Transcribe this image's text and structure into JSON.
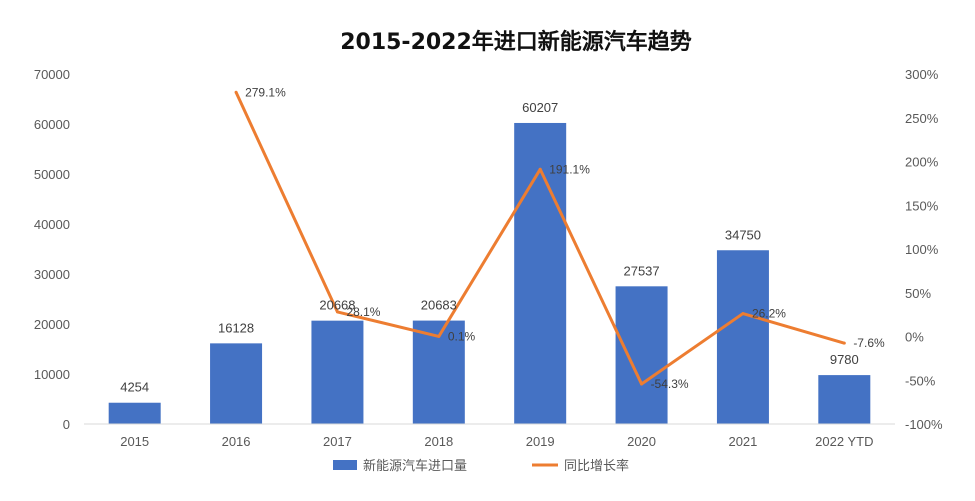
{
  "chart_data": {
    "type": "bar",
    "title": "2015-2022年进口新能源汽车趋势",
    "categories": [
      "2015",
      "2016",
      "2017",
      "2018",
      "2019",
      "2020",
      "2021",
      "2022 YTD"
    ],
    "series": [
      {
        "name": "新能源汽车进口量",
        "type": "bar",
        "axis": "left",
        "color": "#4472C4",
        "values": [
          4254,
          16128,
          20668,
          20683,
          60207,
          27537,
          34750,
          9780
        ],
        "labels": [
          "4254",
          "16128",
          "20668",
          "20683",
          "60207",
          "27537",
          "34750",
          "9780"
        ]
      },
      {
        "name": "同比增长率",
        "type": "line",
        "axis": "right",
        "color": "#ED7D31",
        "values": [
          null,
          279.1,
          28.1,
          0.1,
          191.1,
          -54.3,
          26.2,
          -7.6
        ],
        "labels": [
          "",
          "279.1%",
          "28.1%",
          "0.1%",
          "191.1%",
          "-54.3%",
          "26.2%",
          "-7.6%"
        ]
      }
    ],
    "y_left": {
      "range": [
        0,
        70000
      ],
      "ticks": [
        "0",
        "10000",
        "20000",
        "30000",
        "40000",
        "50000",
        "60000",
        "70000"
      ]
    },
    "y_right": {
      "range": [
        -100,
        300
      ],
      "ticks": [
        "-100%",
        "-50%",
        "0%",
        "50%",
        "100%",
        "150%",
        "200%",
        "250%",
        "300%"
      ]
    },
    "grid": false,
    "legend": "bottom"
  }
}
